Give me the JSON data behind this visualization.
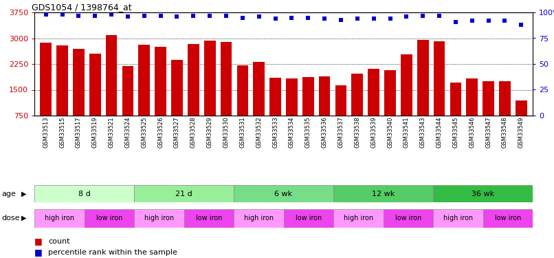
{
  "title": "GDS1054 / 1398764_at",
  "samples": [
    "GSM33513",
    "GSM33515",
    "GSM33517",
    "GSM33519",
    "GSM33521",
    "GSM33524",
    "GSM33525",
    "GSM33526",
    "GSM33527",
    "GSM33528",
    "GSM33529",
    "GSM33530",
    "GSM33531",
    "GSM33532",
    "GSM33533",
    "GSM33534",
    "GSM33535",
    "GSM33536",
    "GSM33537",
    "GSM33538",
    "GSM33539",
    "GSM33540",
    "GSM33541",
    "GSM33543",
    "GSM33544",
    "GSM33545",
    "GSM33546",
    "GSM33547",
    "GSM33548",
    "GSM33549"
  ],
  "counts": [
    2870,
    2800,
    2700,
    2550,
    3100,
    2200,
    2810,
    2750,
    2380,
    2840,
    2930,
    2890,
    2210,
    2310,
    1850,
    1820,
    1870,
    1880,
    1620,
    1970,
    2120,
    2080,
    2530,
    2960,
    2910,
    1700,
    1830,
    1740,
    1740,
    1200
  ],
  "percentile_ranks": [
    98,
    98,
    97,
    97,
    98,
    96,
    97,
    97,
    96,
    97,
    97,
    97,
    95,
    96,
    94,
    95,
    95,
    94,
    93,
    94,
    94,
    94,
    96,
    97,
    97,
    91,
    92,
    92,
    92,
    88
  ],
  "bar_color": "#cc0000",
  "dot_color": "#0000cc",
  "ylim_left": [
    750,
    3750
  ],
  "yticks_left": [
    750,
    1500,
    2250,
    3000,
    3750
  ],
  "ylim_right": [
    0,
    100
  ],
  "yticks_right": [
    0,
    25,
    50,
    75,
    100
  ],
  "age_groups": [
    {
      "label": "8 d",
      "start": 0,
      "end": 6
    },
    {
      "label": "21 d",
      "start": 6,
      "end": 12
    },
    {
      "label": "6 wk",
      "start": 12,
      "end": 18
    },
    {
      "label": "12 wk",
      "start": 18,
      "end": 24
    },
    {
      "label": "36 wk",
      "start": 24,
      "end": 30
    }
  ],
  "age_colors": [
    "#ccffcc",
    "#99ee99",
    "#77dd88",
    "#55cc66",
    "#33bb44"
  ],
  "dose_groups": [
    {
      "label": "high iron",
      "start": 0,
      "end": 3
    },
    {
      "label": "low iron",
      "start": 3,
      "end": 6
    },
    {
      "label": "high iron",
      "start": 6,
      "end": 9
    },
    {
      "label": "low iron",
      "start": 9,
      "end": 12
    },
    {
      "label": "high iron",
      "start": 12,
      "end": 15
    },
    {
      "label": "low iron",
      "start": 15,
      "end": 18
    },
    {
      "label": "high iron",
      "start": 18,
      "end": 21
    },
    {
      "label": "low iron",
      "start": 21,
      "end": 24
    },
    {
      "label": "high iron",
      "start": 24,
      "end": 27
    },
    {
      "label": "low iron",
      "start": 27,
      "end": 30
    }
  ],
  "dose_color_high": "#ff99ff",
  "dose_color_low": "#ee44ee",
  "legend_count_color": "#cc0000",
  "legend_dot_color": "#0000cc",
  "background_color": "#ffffff",
  "gridline_color": "#000000",
  "tick_color_left": "#cc0000",
  "tick_color_right": "#0000cc"
}
